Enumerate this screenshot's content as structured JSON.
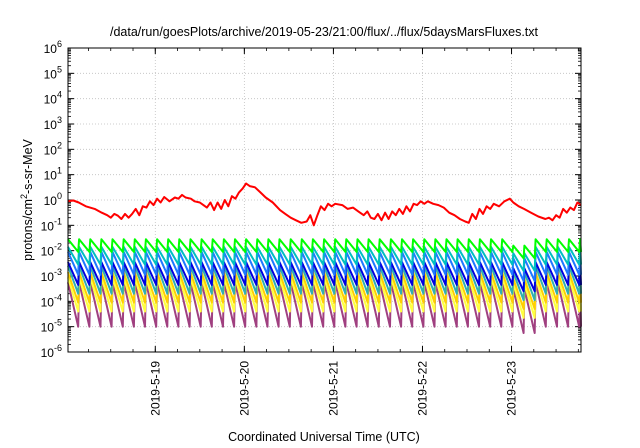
{
  "chart_data": {
    "type": "line",
    "title": "/data/run/goesPlots/archive/2019-05-23/21:00/flux/../flux/5daysMarsFluxes.txt",
    "xlabel": "Coordinated Universal Time (UTC)",
    "ylabel": "protons/cm2-s-sr-MeV",
    "ylabel_parts": {
      "pre": "protons/cm",
      "sup": "2",
      "post": "-s-sr-MeV"
    },
    "yscale": "log",
    "ylim_exponent": [
      -6,
      6
    ],
    "ytick_base": "10",
    "ytick_exponents": [
      "-6",
      "-5",
      "-4",
      "-3",
      "-2",
      "-1",
      "0",
      "1",
      "2",
      "3",
      "4",
      "5",
      "6"
    ],
    "xlim_days": [
      0,
      5.76
    ],
    "x_origin_note": "x axis starts at ~2019-05-18 05:45 UTC",
    "xticks": [
      {
        "label": "2019-5-19",
        "pos": 0.98
      },
      {
        "label": "2019-5-20",
        "pos": 1.98
      },
      {
        "label": "2019-5-21",
        "pos": 2.98
      },
      {
        "label": "2019-5-22",
        "pos": 3.98
      },
      {
        "label": "2019-5-23",
        "pos": 4.98
      }
    ],
    "grid": true,
    "series": [
      {
        "color": "#ff0000",
        "points": [
          [
            0.0,
            -0.05
          ],
          [
            0.06,
            -0.02
          ],
          [
            0.12,
            -0.1
          ],
          [
            0.2,
            -0.25
          ],
          [
            0.3,
            -0.35
          ],
          [
            0.38,
            -0.5
          ],
          [
            0.44,
            -0.6
          ],
          [
            0.48,
            -0.7
          ],
          [
            0.52,
            -0.55
          ],
          [
            0.56,
            -0.62
          ],
          [
            0.6,
            -0.75
          ],
          [
            0.64,
            -0.55
          ],
          [
            0.68,
            -0.7
          ],
          [
            0.72,
            -0.55
          ],
          [
            0.76,
            -0.35
          ],
          [
            0.8,
            -0.6
          ],
          [
            0.84,
            -0.25
          ],
          [
            0.88,
            -0.3
          ],
          [
            0.92,
            -0.05
          ],
          [
            0.96,
            -0.2
          ],
          [
            1.0,
            0.05
          ],
          [
            1.04,
            -0.1
          ],
          [
            1.08,
            0.12
          ],
          [
            1.14,
            -0.05
          ],
          [
            1.2,
            0.1
          ],
          [
            1.24,
            0.05
          ],
          [
            1.28,
            0.2
          ],
          [
            1.32,
            0.1
          ],
          [
            1.38,
            0.05
          ],
          [
            1.42,
            -0.05
          ],
          [
            1.48,
            -0.1
          ],
          [
            1.52,
            -0.2
          ],
          [
            1.56,
            -0.3
          ],
          [
            1.6,
            -0.1
          ],
          [
            1.64,
            -0.4
          ],
          [
            1.68,
            -0.1
          ],
          [
            1.72,
            -0.35
          ],
          [
            1.76,
            0.0
          ],
          [
            1.8,
            -0.25
          ],
          [
            1.84,
            0.15
          ],
          [
            1.88,
            0.05
          ],
          [
            1.92,
            0.3
          ],
          [
            1.96,
            0.45
          ],
          [
            2.0,
            0.65
          ],
          [
            2.04,
            0.55
          ],
          [
            2.1,
            0.5
          ],
          [
            2.16,
            0.3
          ],
          [
            2.22,
            0.1
          ],
          [
            2.3,
            -0.1
          ],
          [
            2.38,
            -0.4
          ],
          [
            2.44,
            -0.55
          ],
          [
            2.5,
            -0.7
          ],
          [
            2.56,
            -0.8
          ],
          [
            2.62,
            -0.9
          ],
          [
            2.68,
            -0.85
          ],
          [
            2.72,
            -0.6
          ],
          [
            2.76,
            -1.0
          ],
          [
            2.8,
            -0.6
          ],
          [
            2.84,
            -0.25
          ],
          [
            2.88,
            -0.4
          ],
          [
            2.92,
            -0.15
          ],
          [
            2.96,
            -0.25
          ],
          [
            3.0,
            -0.15
          ],
          [
            3.08,
            -0.2
          ],
          [
            3.14,
            -0.35
          ],
          [
            3.2,
            -0.3
          ],
          [
            3.26,
            -0.45
          ],
          [
            3.32,
            -0.6
          ],
          [
            3.36,
            -0.45
          ],
          [
            3.4,
            -0.7
          ],
          [
            3.44,
            -0.75
          ],
          [
            3.48,
            -0.55
          ],
          [
            3.52,
            -0.8
          ],
          [
            3.56,
            -0.5
          ],
          [
            3.6,
            -0.75
          ],
          [
            3.64,
            -0.45
          ],
          [
            3.68,
            -0.6
          ],
          [
            3.72,
            -0.35
          ],
          [
            3.76,
            -0.55
          ],
          [
            3.8,
            -0.25
          ],
          [
            3.84,
            -0.45
          ],
          [
            3.88,
            -0.15
          ],
          [
            3.92,
            -0.2
          ],
          [
            3.96,
            -0.05
          ],
          [
            4.0,
            -0.15
          ],
          [
            4.04,
            -0.05
          ],
          [
            4.1,
            -0.15
          ],
          [
            4.16,
            -0.2
          ],
          [
            4.22,
            -0.3
          ],
          [
            4.28,
            -0.5
          ],
          [
            4.34,
            -0.6
          ],
          [
            4.4,
            -0.75
          ],
          [
            4.46,
            -0.85
          ],
          [
            4.5,
            -0.9
          ],
          [
            4.54,
            -0.55
          ],
          [
            4.58,
            -0.75
          ],
          [
            4.62,
            -0.35
          ],
          [
            4.66,
            -0.55
          ],
          [
            4.7,
            -0.25
          ],
          [
            4.74,
            -0.35
          ],
          [
            4.78,
            -0.15
          ],
          [
            4.84,
            -0.25
          ],
          [
            4.9,
            -0.05
          ],
          [
            4.96,
            0.05
          ],
          [
            5.0,
            -0.1
          ],
          [
            5.06,
            -0.25
          ],
          [
            5.12,
            -0.35
          ],
          [
            5.2,
            -0.5
          ],
          [
            5.28,
            -0.65
          ],
          [
            5.36,
            -0.75
          ],
          [
            5.4,
            -0.7
          ],
          [
            5.44,
            -0.8
          ],
          [
            5.48,
            -0.6
          ],
          [
            5.52,
            -0.7
          ],
          [
            5.56,
            -0.35
          ],
          [
            5.6,
            -0.5
          ],
          [
            5.64,
            -0.3
          ],
          [
            5.68,
            -0.4
          ],
          [
            5.72,
            -0.1
          ],
          [
            5.76,
            -0.2
          ]
        ]
      },
      {
        "color": "#00ff00",
        "saw": {
          "top": -1.55,
          "bottom": -2.05,
          "period": 0.125
        }
      },
      {
        "color": "#00c0c0",
        "saw": {
          "top": -1.85,
          "bottom": -2.55,
          "period": 0.125
        }
      },
      {
        "color": "#1e78ff",
        "saw": {
          "top": -2.05,
          "bottom": -2.95,
          "period": 0.125
        }
      },
      {
        "color": "#0000e0",
        "saw": {
          "top": -2.45,
          "bottom": -3.35,
          "period": 0.125
        }
      },
      {
        "color": "#30b0b0",
        "saw": {
          "top": -2.6,
          "bottom": -3.7,
          "period": 0.125
        }
      },
      {
        "color": "#ffd000",
        "saw": {
          "top": -2.85,
          "bottom": -4.05,
          "period": 0.125
        }
      },
      {
        "color": "#ffff40",
        "saw": {
          "top": -3.05,
          "bottom": -4.4,
          "period": 0.125
        }
      },
      {
        "color": "#a04080",
        "saw": {
          "top": -3.25,
          "bottom": -5.0,
          "period": 0.125
        }
      }
    ]
  }
}
